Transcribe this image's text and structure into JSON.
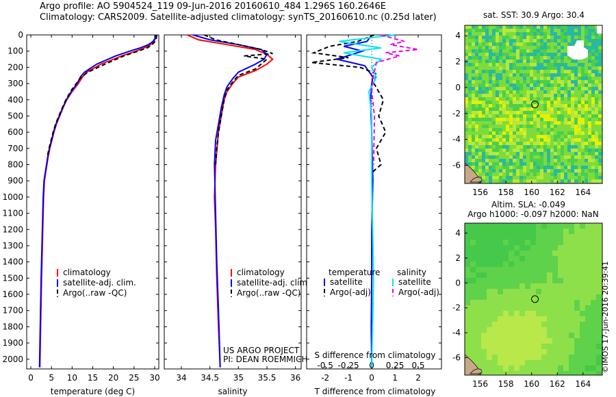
{
  "header": {
    "line1": "Argo profile: AO 5904524_119 09-Jun-2016 20160610_484 1.296S 160.2646E",
    "line2": "Climatology: CARS2009. Satellite-adjusted climatology: synTS_20160610.nc (0.25d later)"
  },
  "colors": {
    "climatology": "#ff0000",
    "satellite": "#0000ff",
    "argo": "#000000",
    "sal_satellite": "#00e5ee",
    "sal_argo": "#ee00ee"
  },
  "chart_data": [
    {
      "type": "line",
      "name": "temperature-profile",
      "xlabel": "temperature (deg C)",
      "ylabel": "",
      "xlim": [
        -1,
        31
      ],
      "ylim": [
        2060,
        0
      ],
      "xticks": [
        0,
        5,
        10,
        15,
        20,
        25,
        30
      ],
      "yticks": [
        0,
        100,
        200,
        300,
        400,
        500,
        600,
        700,
        800,
        900,
        1000,
        1100,
        1200,
        1300,
        1400,
        1500,
        1600,
        1700,
        1800,
        1900,
        2000
      ],
      "legend": {
        "placement": "bottom-center",
        "entries": [
          "climatology",
          "satellite-adj. clim.",
          "Argo(..raw -QC)"
        ]
      },
      "series": [
        {
          "name": "climatology",
          "x": [
            30.3,
            30.2,
            29.8,
            29.0,
            27.5,
            25.5,
            22.0,
            17.0,
            13.5,
            12.5,
            11.5,
            10.0,
            8.7,
            7.8,
            7.0,
            6.2,
            5.6,
            5.1,
            4.6,
            4.2,
            3.9,
            3.6,
            3.3,
            3.1,
            2.6,
            2.2
          ],
          "y": [
            0,
            20,
            40,
            60,
            80,
            100,
            130,
            180,
            230,
            260,
            300,
            350,
            400,
            450,
            500,
            550,
            600,
            650,
            700,
            750,
            800,
            850,
            900,
            1000,
            1500,
            2050
          ]
        },
        {
          "name": "satellite-adj. clim.",
          "x": [
            30.3,
            30.1,
            29.6,
            28.5,
            26.5,
            24.0,
            20.5,
            16.0,
            13.0,
            12.0,
            11.2,
            9.8,
            8.6,
            7.7,
            6.9,
            6.1,
            5.5,
            5.0,
            4.5,
            4.1,
            3.8,
            3.5,
            3.2,
            3.0,
            2.5,
            2.1
          ],
          "y": [
            0,
            20,
            40,
            60,
            80,
            100,
            130,
            180,
            230,
            260,
            300,
            350,
            400,
            450,
            500,
            550,
            600,
            650,
            700,
            750,
            800,
            850,
            900,
            1000,
            1500,
            2050
          ]
        },
        {
          "name": "Argo(..raw -QC)",
          "x": [
            30.5,
            30.4,
            30.1,
            29.4,
            28.2,
            26.0,
            22.5,
            18.0,
            13.8,
            12.2,
            11.0,
            9.6,
            8.5,
            7.6,
            6.8,
            6.0,
            5.4,
            4.9,
            4.4,
            4.0
          ],
          "y": [
            0,
            20,
            40,
            60,
            80,
            100,
            130,
            180,
            230,
            260,
            300,
            350,
            400,
            450,
            500,
            550,
            600,
            650,
            700,
            750
          ]
        }
      ]
    },
    {
      "type": "line",
      "name": "salinity-profile",
      "xlabel": "salinity",
      "ylabel": "",
      "xlim": [
        33.7,
        36.1
      ],
      "ylim": [
        2060,
        0
      ],
      "xticks": [
        34,
        34.5,
        35,
        35.5,
        36
      ],
      "legend": {
        "placement": "bottom-center",
        "entries": [
          "climatology",
          "satellite-adj. clim.",
          "Argo(..raw -QC)"
        ]
      },
      "annotation": [
        "US ARGO PROJECT",
        "PI: DEAN ROEMMICH"
      ],
      "series": [
        {
          "name": "climatology",
          "x": [
            34.1,
            34.3,
            34.8,
            35.3,
            35.5,
            35.6,
            35.5,
            35.3,
            35.0,
            34.9,
            34.8,
            34.75,
            34.7,
            34.65,
            34.6,
            34.58,
            34.6,
            34.62,
            34.65,
            34.68
          ],
          "y": [
            0,
            30,
            60,
            90,
            120,
            150,
            180,
            220,
            260,
            300,
            350,
            400,
            500,
            600,
            800,
            1000,
            1200,
            1500,
            1800,
            2050
          ]
        },
        {
          "name": "satellite-adj. clim.",
          "x": [
            34.2,
            34.5,
            35.0,
            35.4,
            35.5,
            35.45,
            35.3,
            35.0,
            34.9,
            34.8,
            34.75,
            34.7,
            34.65,
            34.6,
            34.58,
            34.6,
            34.62,
            34.65,
            34.68
          ],
          "y": [
            0,
            30,
            60,
            90,
            120,
            150,
            180,
            230,
            270,
            320,
            370,
            450,
            550,
            650,
            800,
            1100,
            1400,
            1700,
            2050
          ]
        },
        {
          "name": "Argo(..raw -QC)",
          "x": [
            34.4,
            34.6,
            35.0,
            35.4,
            35.6,
            35.1,
            35.5,
            35.3,
            35.0,
            34.9,
            34.8,
            34.75,
            34.7,
            34.65,
            34.62,
            34.6
          ],
          "y": [
            0,
            30,
            60,
            90,
            115,
            130,
            150,
            210,
            250,
            290,
            340,
            400,
            500,
            600,
            700,
            800
          ]
        }
      ]
    },
    {
      "type": "line",
      "name": "difference-from-climatology",
      "xlabel": "T difference from climatology",
      "x2label": "S difference from climatology",
      "xlim": [
        -2.8,
        3.0
      ],
      "x2lim": [
        -0.7,
        0.75
      ],
      "ylim": [
        2060,
        0
      ],
      "xticks": [
        -2,
        -1,
        0,
        1,
        2
      ],
      "x2ticks": [
        -0.5,
        -0.25,
        0,
        0.25,
        0.5
      ],
      "x2ticklabels": [
        "-0.5",
        "-0.25",
        "0",
        "0.25",
        "0.5"
      ],
      "legend": {
        "placement": "bottom-center",
        "groups": [
          "temperature",
          "salinity"
        ],
        "entries": [
          "satellite",
          "Argo(-adj)",
          "satellite",
          "Argo(-adj)"
        ]
      },
      "series": [
        {
          "name": "temperature satellite",
          "x": [
            0,
            -0.2,
            -1.2,
            -0.4,
            -1.5,
            -0.3,
            -0.1,
            0.05,
            0,
            -0.05,
            0,
            0.05,
            0,
            0,
            -0.02,
            0
          ],
          "y": [
            0,
            40,
            70,
            100,
            150,
            190,
            230,
            260,
            300,
            400,
            600,
            900,
            1200,
            1500,
            1800,
            2050
          ]
        },
        {
          "name": "temperature Argo(-adj)",
          "x": [
            0.1,
            -0.6,
            -1.8,
            -2.5,
            -1.0,
            -2.6,
            -0.5,
            0.2,
            0.1,
            0.5,
            0.3,
            0.6,
            0.2,
            0.4,
            0
          ],
          "y": [
            0,
            40,
            70,
            110,
            140,
            170,
            200,
            240,
            300,
            400,
            500,
            600,
            700,
            800,
            850
          ]
        },
        {
          "name": "salinity satellite",
          "x": [
            0.25,
            -0.35,
            0.1,
            -0.3,
            0.1,
            0,
            0.05,
            -0.03,
            0,
            0,
            0.02,
            0
          ],
          "y": [
            0,
            40,
            80,
            110,
            150,
            200,
            260,
            350,
            500,
            900,
            1500,
            2050
          ]
        },
        {
          "name": "salinity Argo(-adj)",
          "x": [
            0.1,
            0.35,
            0.2,
            0.5,
            0.15,
            0.3,
            0.05,
            0.02,
            0,
            0.03,
            0.02
          ],
          "y": [
            0,
            40,
            60,
            90,
            110,
            130,
            170,
            250,
            350,
            500,
            800
          ]
        }
      ]
    },
    {
      "type": "heatmap",
      "name": "sat-sst-map",
      "title": "sat. SST: 30.9 Argo: 30.4",
      "xticks": [
        156,
        158,
        160,
        162,
        164
      ],
      "yticks": [
        4,
        2,
        0,
        -2,
        -4,
        -6
      ],
      "xlim": [
        154.8,
        165.5
      ],
      "ylim": [
        -7.4,
        4.8
      ],
      "marker": {
        "lon": 160.26,
        "lat": -1.3
      }
    },
    {
      "type": "heatmap",
      "name": "altimetry-sla-map",
      "title": "Altim. SLA: -0.049",
      "subtitle": "Argo h1000: -0.097 h2000: NaN",
      "xticks": [
        156,
        158,
        160,
        162,
        164
      ],
      "yticks": [
        4,
        2,
        0,
        -2,
        -4,
        -6
      ],
      "xlim": [
        154.8,
        165.5
      ],
      "ylim": [
        -7.4,
        4.8
      ],
      "marker": {
        "lon": 160.26,
        "lat": -1.3
      }
    }
  ],
  "stamp": "©IMOS 17-Jun-2016 20:39:41"
}
